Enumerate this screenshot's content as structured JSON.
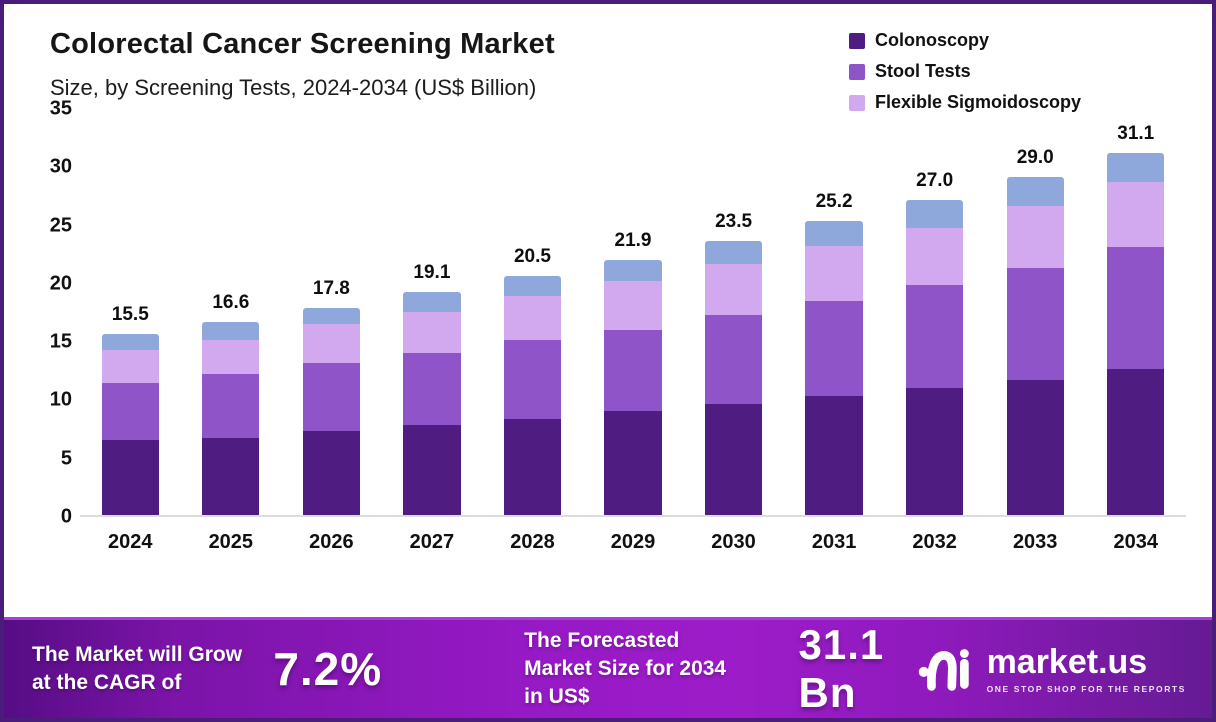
{
  "frame": {
    "border_color": "#4a1d7a",
    "background": "#ffffff"
  },
  "header": {
    "title": "Colorectal Cancer Screening Market",
    "subtitle": "Size, by Screening Tests, 2024-2034 (US$ Billion)"
  },
  "legend": [
    {
      "label": "Colonoscopy",
      "color": "#4f1c82"
    },
    {
      "label": "Stool Tests",
      "color": "#8f55c8"
    },
    {
      "label": "Flexible Sigmoidoscopy",
      "color": "#d2a9ef"
    }
  ],
  "chart_data": {
    "type": "bar",
    "stacked": true,
    "title": "Colorectal Cancer Screening Market Size, by Screening Tests, 2024-2034 (US$ Billion)",
    "categories": [
      "2024",
      "2025",
      "2026",
      "2027",
      "2028",
      "2029",
      "2030",
      "2031",
      "2032",
      "2033",
      "2034"
    ],
    "series": [
      {
        "name": "Colonoscopy",
        "color": "#4f1c82",
        "values": [
          6.4,
          6.6,
          7.2,
          7.7,
          8.2,
          8.9,
          9.5,
          10.2,
          10.9,
          11.6,
          12.5
        ]
      },
      {
        "name": "Stool Tests",
        "color": "#8f55c8",
        "values": [
          4.9,
          5.5,
          5.8,
          6.2,
          6.8,
          7.0,
          7.7,
          8.2,
          8.8,
          9.6,
          10.5
        ]
      },
      {
        "name": "Flexible Sigmoidoscopy",
        "color": "#d2a9ef",
        "values": [
          2.9,
          2.9,
          3.4,
          3.5,
          3.8,
          4.2,
          4.3,
          4.7,
          4.9,
          5.3,
          5.6
        ]
      },
      {
        "name": "",
        "color": "#8fa8dc",
        "values": [
          1.3,
          1.6,
          1.4,
          1.7,
          1.7,
          1.8,
          2.0,
          2.1,
          2.4,
          2.5,
          2.5
        ]
      }
    ],
    "totals": [
      15.5,
      16.6,
      17.8,
      19.1,
      20.5,
      21.9,
      23.5,
      25.2,
      27.0,
      29.0,
      31.1
    ],
    "total_labels": [
      "15.5",
      "16.6",
      "17.8",
      "19.1",
      "20.5",
      "21.9",
      "23.5",
      "25.2",
      "27.0",
      "29.0",
      "31.1"
    ],
    "xlabel": "",
    "ylabel": "",
    "ylim": [
      0,
      35
    ],
    "yticks": [
      0,
      5,
      10,
      15,
      20,
      25,
      30,
      35
    ],
    "grid": false,
    "legend_position": "top-right"
  },
  "footer": {
    "cagr_label": "The Market will Grow at the CAGR of",
    "cagr_value": "7.2%",
    "forecast_label": "The Forecasted Market Size for 2034 in US$",
    "forecast_value": "31.1 Bn",
    "brand": {
      "name": "market.us",
      "tagline": "ONE STOP SHOP FOR THE REPORTS"
    }
  }
}
